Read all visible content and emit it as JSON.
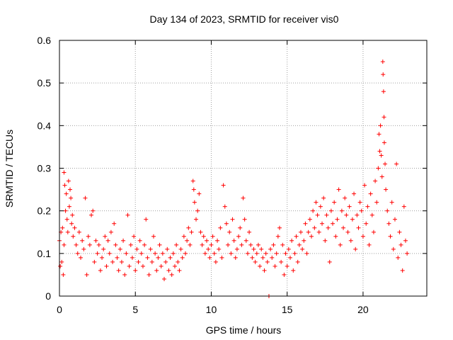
{
  "chart_data": {
    "type": "scatter",
    "title": "Day 134 of 2023, SRMTID for receiver vis0",
    "xlabel": "GPS time / hours",
    "ylabel": "SRMTID / TECUs",
    "xlim": [
      0,
      24.2
    ],
    "ylim": [
      0,
      0.6
    ],
    "xticks": [
      0,
      5,
      10,
      15,
      20
    ],
    "xtick_labels": [
      "0",
      "5",
      "10",
      "15",
      "20"
    ],
    "yticks": [
      0,
      0.1,
      0.2,
      0.3,
      0.4,
      0.5,
      0.6
    ],
    "ytick_labels": [
      "0",
      "0.1",
      "0.2",
      "0.3",
      "0.4",
      "0.5",
      "0.6"
    ],
    "grid": true,
    "marker": "+",
    "color": "#ff0000",
    "series": [
      {
        "name": "SRMTID",
        "points": [
          [
            0.0,
            0.13
          ],
          [
            0.05,
            0.07
          ],
          [
            0.1,
            0.15
          ],
          [
            0.15,
            0.08
          ],
          [
            0.2,
            0.16
          ],
          [
            0.25,
            0.05
          ],
          [
            0.3,
            0.12
          ],
          [
            0.3,
            0.29
          ],
          [
            0.35,
            0.26
          ],
          [
            0.4,
            0.2
          ],
          [
            0.45,
            0.24
          ],
          [
            0.5,
            0.18
          ],
          [
            0.55,
            0.15
          ],
          [
            0.6,
            0.27
          ],
          [
            0.65,
            0.21
          ],
          [
            0.7,
            0.25
          ],
          [
            0.75,
            0.23
          ],
          [
            0.8,
            0.17
          ],
          [
            0.85,
            0.19
          ],
          [
            0.9,
            0.14
          ],
          [
            1.0,
            0.16
          ],
          [
            1.1,
            0.12
          ],
          [
            1.2,
            0.1
          ],
          [
            1.3,
            0.15
          ],
          [
            1.4,
            0.09
          ],
          [
            1.5,
            0.13
          ],
          [
            1.6,
            0.11
          ],
          [
            1.7,
            0.23
          ],
          [
            1.8,
            0.05
          ],
          [
            1.9,
            0.14
          ],
          [
            2.0,
            0.12
          ],
          [
            2.1,
            0.19
          ],
          [
            2.2,
            0.2
          ],
          [
            2.3,
            0.08
          ],
          [
            2.4,
            0.13
          ],
          [
            2.5,
            0.1
          ],
          [
            2.6,
            0.12
          ],
          [
            2.7,
            0.06
          ],
          [
            2.8,
            0.09
          ],
          [
            2.9,
            0.11
          ],
          [
            3.0,
            0.14
          ],
          [
            3.1,
            0.07
          ],
          [
            3.2,
            0.13
          ],
          [
            3.3,
            0.1
          ],
          [
            3.4,
            0.15
          ],
          [
            3.5,
            0.08
          ],
          [
            3.6,
            0.17
          ],
          [
            3.7,
            0.12
          ],
          [
            3.8,
            0.09
          ],
          [
            3.9,
            0.06
          ],
          [
            4.0,
            0.11
          ],
          [
            4.1,
            0.08
          ],
          [
            4.2,
            0.13
          ],
          [
            4.3,
            0.05
          ],
          [
            4.4,
            0.1
          ],
          [
            4.5,
            0.19
          ],
          [
            4.6,
            0.07
          ],
          [
            4.7,
            0.12
          ],
          [
            4.8,
            0.09
          ],
          [
            4.9,
            0.14
          ],
          [
            5.0,
            0.06
          ],
          [
            5.1,
            0.11
          ],
          [
            5.2,
            0.08
          ],
          [
            5.3,
            0.13
          ],
          [
            5.4,
            0.1
          ],
          [
            5.5,
            0.07
          ],
          [
            5.6,
            0.12
          ],
          [
            5.7,
            0.18
          ],
          [
            5.8,
            0.09
          ],
          [
            5.9,
            0.05
          ],
          [
            6.0,
            0.11
          ],
          [
            6.1,
            0.08
          ],
          [
            6.2,
            0.14
          ],
          [
            6.3,
            0.1
          ],
          [
            6.4,
            0.06
          ],
          [
            6.5,
            0.09
          ],
          [
            6.6,
            0.12
          ],
          [
            6.7,
            0.07
          ],
          [
            6.8,
            0.1
          ],
          [
            6.9,
            0.04
          ],
          [
            7.0,
            0.08
          ],
          [
            7.1,
            0.11
          ],
          [
            7.2,
            0.06
          ],
          [
            7.3,
            0.09
          ],
          [
            7.4,
            0.05
          ],
          [
            7.5,
            0.1
          ],
          [
            7.6,
            0.07
          ],
          [
            7.7,
            0.12
          ],
          [
            7.8,
            0.08
          ],
          [
            7.9,
            0.06
          ],
          [
            8.0,
            0.11
          ],
          [
            8.1,
            0.09
          ],
          [
            8.2,
            0.14
          ],
          [
            8.3,
            0.1
          ],
          [
            8.4,
            0.13
          ],
          [
            8.5,
            0.16
          ],
          [
            8.6,
            0.12
          ],
          [
            8.7,
            0.15
          ],
          [
            8.8,
            0.27
          ],
          [
            8.85,
            0.25
          ],
          [
            8.9,
            0.22
          ],
          [
            9.0,
            0.18
          ],
          [
            9.1,
            0.2
          ],
          [
            9.2,
            0.24
          ],
          [
            9.3,
            0.15
          ],
          [
            9.4,
            0.12
          ],
          [
            9.5,
            0.14
          ],
          [
            9.6,
            0.1
          ],
          [
            9.7,
            0.13
          ],
          [
            9.8,
            0.11
          ],
          [
            9.9,
            0.09
          ],
          [
            10.0,
            0.12
          ],
          [
            10.1,
            0.14
          ],
          [
            10.2,
            0.1
          ],
          [
            10.3,
            0.08
          ],
          [
            10.4,
            0.13
          ],
          [
            10.5,
            0.11
          ],
          [
            10.6,
            0.16
          ],
          [
            10.7,
            0.09
          ],
          [
            10.8,
            0.26
          ],
          [
            10.9,
            0.21
          ],
          [
            11.0,
            0.17
          ],
          [
            11.1,
            0.12
          ],
          [
            11.2,
            0.15
          ],
          [
            11.3,
            0.1
          ],
          [
            11.4,
            0.18
          ],
          [
            11.5,
            0.13
          ],
          [
            11.6,
            0.09
          ],
          [
            11.7,
            0.11
          ],
          [
            11.8,
            0.14
          ],
          [
            11.9,
            0.16
          ],
          [
            12.0,
            0.12
          ],
          [
            12.1,
            0.23
          ],
          [
            12.2,
            0.18
          ],
          [
            12.3,
            0.13
          ],
          [
            12.4,
            0.1
          ],
          [
            12.5,
            0.15
          ],
          [
            12.6,
            0.12
          ],
          [
            12.7,
            0.09
          ],
          [
            12.8,
            0.11
          ],
          [
            12.9,
            0.08
          ],
          [
            13.0,
            0.1
          ],
          [
            13.1,
            0.12
          ],
          [
            13.2,
            0.07
          ],
          [
            13.3,
            0.11
          ],
          [
            13.4,
            0.09
          ],
          [
            13.5,
            0.06
          ],
          [
            13.6,
            0.1
          ],
          [
            13.7,
            0.08
          ],
          [
            13.8,
            0.0
          ],
          [
            13.9,
            0.11
          ],
          [
            14.0,
            0.09
          ],
          [
            14.1,
            0.12
          ],
          [
            14.2,
            0.07
          ],
          [
            14.3,
            0.1
          ],
          [
            14.4,
            0.14
          ],
          [
            14.5,
            0.16
          ],
          [
            14.6,
            0.08
          ],
          [
            14.7,
            0.12
          ],
          [
            14.8,
            0.05
          ],
          [
            14.9,
            0.1
          ],
          [
            15.0,
            0.07
          ],
          [
            15.1,
            0.11
          ],
          [
            15.2,
            0.09
          ],
          [
            15.3,
            0.13
          ],
          [
            15.4,
            0.06
          ],
          [
            15.5,
            0.1
          ],
          [
            15.6,
            0.14
          ],
          [
            15.7,
            0.08
          ],
          [
            15.8,
            0.12
          ],
          [
            15.9,
            0.15
          ],
          [
            16.0,
            0.11
          ],
          [
            16.1,
            0.13
          ],
          [
            16.2,
            0.17
          ],
          [
            16.3,
            0.1
          ],
          [
            16.4,
            0.15
          ],
          [
            16.5,
            0.18
          ],
          [
            16.6,
            0.14
          ],
          [
            16.7,
            0.2
          ],
          [
            16.8,
            0.16
          ],
          [
            16.9,
            0.22
          ],
          [
            17.0,
            0.19
          ],
          [
            17.1,
            0.15
          ],
          [
            17.2,
            0.21
          ],
          [
            17.3,
            0.17
          ],
          [
            17.4,
            0.23
          ],
          [
            17.5,
            0.13
          ],
          [
            17.6,
            0.19
          ],
          [
            17.7,
            0.16
          ],
          [
            17.8,
            0.08
          ],
          [
            17.9,
            0.2
          ],
          [
            18.0,
            0.17
          ],
          [
            18.1,
            0.22
          ],
          [
            18.2,
            0.14
          ],
          [
            18.3,
            0.18
          ],
          [
            18.4,
            0.25
          ],
          [
            18.5,
            0.12
          ],
          [
            18.6,
            0.2
          ],
          [
            18.7,
            0.16
          ],
          [
            18.8,
            0.23
          ],
          [
            18.9,
            0.19
          ],
          [
            19.0,
            0.15
          ],
          [
            19.1,
            0.21
          ],
          [
            19.2,
            0.13
          ],
          [
            19.3,
            0.18
          ],
          [
            19.4,
            0.24
          ],
          [
            19.5,
            0.11
          ],
          [
            19.6,
            0.19
          ],
          [
            19.7,
            0.16
          ],
          [
            19.8,
            0.22
          ],
          [
            19.9,
            0.2
          ],
          [
            20.0,
            0.14
          ],
          [
            20.1,
            0.26
          ],
          [
            20.2,
            0.17
          ],
          [
            20.3,
            0.21
          ],
          [
            20.4,
            0.12
          ],
          [
            20.5,
            0.24
          ],
          [
            20.6,
            0.19
          ],
          [
            20.7,
            0.15
          ],
          [
            20.8,
            0.27
          ],
          [
            20.9,
            0.22
          ],
          [
            21.0,
            0.3
          ],
          [
            21.05,
            0.38
          ],
          [
            21.1,
            0.34
          ],
          [
            21.15,
            0.4
          ],
          [
            21.2,
            0.33
          ],
          [
            21.25,
            0.28
          ],
          [
            21.3,
            0.55
          ],
          [
            21.32,
            0.52
          ],
          [
            21.35,
            0.48
          ],
          [
            21.38,
            0.42
          ],
          [
            21.4,
            0.36
          ],
          [
            21.45,
            0.31
          ],
          [
            21.5,
            0.25
          ],
          [
            21.6,
            0.2
          ],
          [
            21.7,
            0.17
          ],
          [
            21.8,
            0.14
          ],
          [
            21.9,
            0.22
          ],
          [
            22.0,
            0.11
          ],
          [
            22.1,
            0.18
          ],
          [
            22.2,
            0.31
          ],
          [
            22.3,
            0.09
          ],
          [
            22.4,
            0.15
          ],
          [
            22.5,
            0.12
          ],
          [
            22.6,
            0.06
          ],
          [
            22.7,
            0.21
          ],
          [
            22.8,
            0.13
          ],
          [
            22.9,
            0.1
          ]
        ]
      }
    ]
  }
}
